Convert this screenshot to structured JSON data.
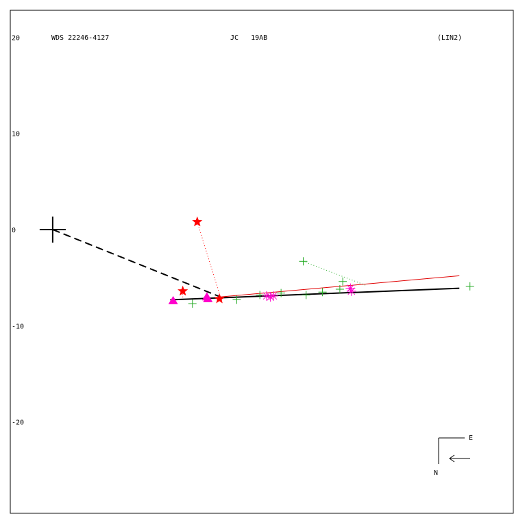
{
  "header": {
    "designation": "WDS 22246-4127",
    "discoverer": "JC   19AB",
    "orbit_code": "(LIN2)"
  },
  "compass": {
    "east_label": "E",
    "north_label": "N"
  },
  "colors": {
    "frame": "#000000",
    "fit_line": "#000000",
    "alt_fit_line": "#e00000",
    "star_marker": "#ff0000",
    "triangle_marker": "#ff00cc",
    "asterisk_marker": "#ff00cc",
    "plus_marker": "#22aa22"
  },
  "chart_data": {
    "type": "scatter",
    "title": "",
    "xlabel": "",
    "ylabel": "",
    "y_ticks": [
      20,
      10,
      0,
      -10,
      -20
    ],
    "xlim": [
      -4.4,
      47.8
    ],
    "ylim": [
      -29.5,
      22.8
    ],
    "grid": false,
    "primary": {
      "x": 0,
      "y": 0
    },
    "fit_line": [
      {
        "x": 12.2,
        "y": -7.3
      },
      {
        "x": 42.2,
        "y": -6.1
      }
    ],
    "alt_fit_line": [
      {
        "x": 17.4,
        "y": -7.0
      },
      {
        "x": 42.2,
        "y": -4.8
      }
    ],
    "node_line": [
      {
        "x": 0,
        "y": 0
      },
      {
        "x": 17.4,
        "y": -7.0
      }
    ],
    "series": [
      {
        "marker": "star",
        "points": [
          {
            "x": 15.0,
            "y": 0.8,
            "ox": 17.4,
            "oy": -7.0
          },
          {
            "x": 13.5,
            "y": -6.4,
            "ox": 13.5,
            "oy": -7.1
          },
          {
            "x": 17.3,
            "y": -7.2,
            "ox": 17.4,
            "oy": -7.0
          }
        ]
      },
      {
        "marker": "triangle",
        "points": [
          {
            "x": 12.5,
            "y": -7.4
          },
          {
            "x": 16.0,
            "y": -7.0
          },
          {
            "x": 16.1,
            "y": -7.2
          }
        ]
      },
      {
        "marker": "asterisk",
        "points": [
          {
            "x": 22.2,
            "y": -6.9
          },
          {
            "x": 22.6,
            "y": -7.0
          },
          {
            "x": 22.9,
            "y": -6.9
          },
          {
            "x": 30.9,
            "y": -6.1
          },
          {
            "x": 31.0,
            "y": -6.4
          }
        ]
      },
      {
        "marker": "plus",
        "points": [
          {
            "x": 14.5,
            "y": -7.7
          },
          {
            "x": 19.1,
            "y": -7.3
          },
          {
            "x": 21.5,
            "y": -6.8
          },
          {
            "x": 23.7,
            "y": -6.6
          },
          {
            "x": 26.0,
            "y": -3.3,
            "ox": 32.5,
            "oy": -5.8
          },
          {
            "x": 26.3,
            "y": -6.8
          },
          {
            "x": 28.0,
            "y": -6.5
          },
          {
            "x": 30.1,
            "y": -5.4
          },
          {
            "x": 29.8,
            "y": -6.2
          },
          {
            "x": 43.3,
            "y": -5.9
          }
        ]
      }
    ]
  }
}
